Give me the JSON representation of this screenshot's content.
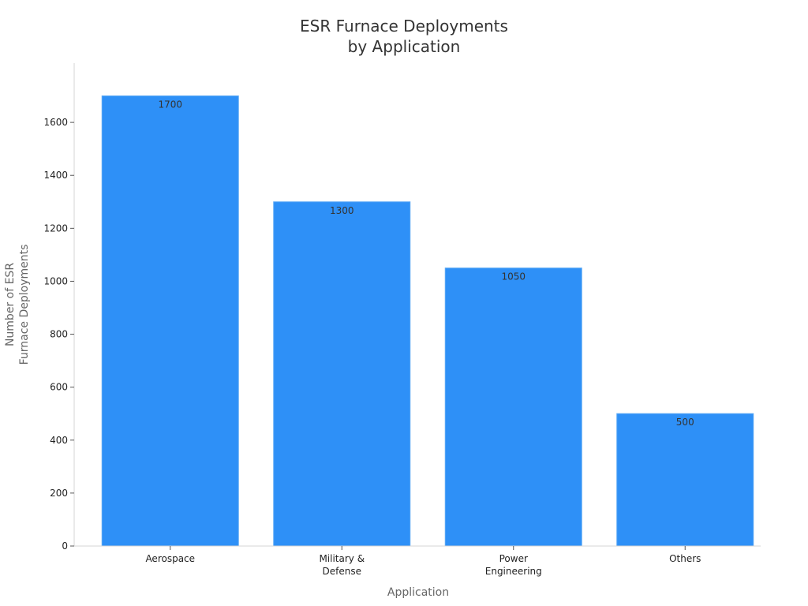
{
  "chart_data": {
    "type": "bar",
    "title": [
      "ESR Furnace Deployments",
      "by Application"
    ],
    "categories": [
      [
        "Aerospace"
      ],
      [
        "Military &",
        "Defense"
      ],
      [
        "Power",
        "Engineering"
      ],
      [
        "Others"
      ]
    ],
    "values": [
      1700,
      1300,
      1050,
      500
    ],
    "data_labels": [
      "1700",
      "1300",
      "1050",
      "500"
    ],
    "xlabel": "Application",
    "ylabel": [
      "Number of ESR",
      "Furnace Deployments"
    ],
    "ylim": [
      0,
      1800
    ],
    "yticks": [
      0,
      200,
      400,
      600,
      800,
      1000,
      1200,
      1400,
      1600
    ],
    "grid": false,
    "colors": {
      "bar": "#2e90f7",
      "bar_edge": "#5aa8f5"
    }
  }
}
